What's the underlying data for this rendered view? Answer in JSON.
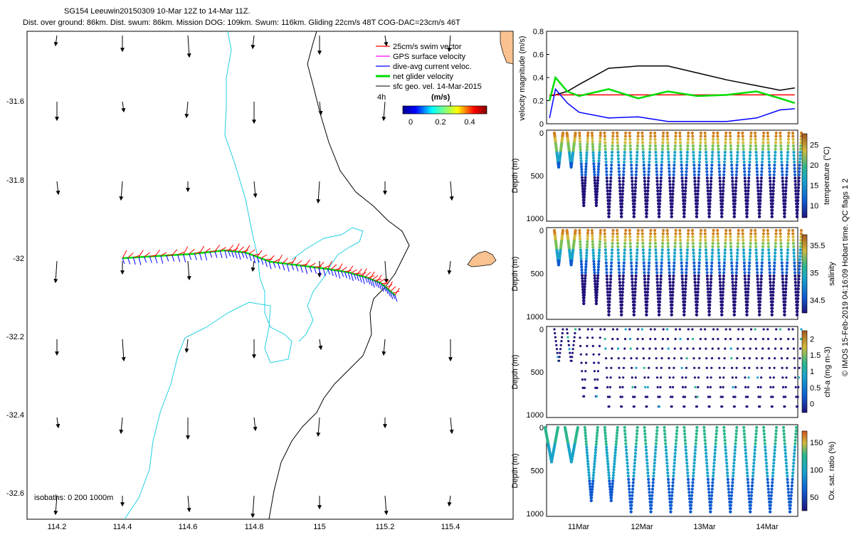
{
  "title": {
    "line1": "SG154 Leeuwin20150309 10-Mar 12Z to 14-Mar 11Z.",
    "line2": "Dist. over ground: 86km. Dist. swum: 86km. Mission DOG: 109km. Swum: 116km. Gliding 22cm/s 48T COG-DAC=23cm/s 46T"
  },
  "map": {
    "lon_ticks": [
      "114.2",
      "114.4",
      "114.6",
      "114.8",
      "115",
      "115.2",
      "115.4"
    ],
    "lat_ticks": [
      "-31.6",
      "-31.8",
      "-32",
      "-32.2",
      "-32.4",
      "-32.6"
    ],
    "legend": [
      {
        "label": "25cm/s swim vector",
        "color": "#ff0000"
      },
      {
        "label": "GPS surface velocity",
        "color": "#ff00ff"
      },
      {
        "label": "dive-avg current veloc.",
        "color": "#0000ff"
      },
      {
        "label": "net glider velocity",
        "color": "#00dd00"
      },
      {
        "label": "sfc geo. vel. 14-Mar-2015",
        "color": "#000000"
      }
    ],
    "scale_label": "4h",
    "colorbar_unit": "(m/s)",
    "colorbar_ticks": [
      "0",
      "0.2",
      "0.4"
    ],
    "isobaths": "isobaths: 0   200  1000m"
  },
  "chart_data": [
    {
      "type": "line",
      "title": "",
      "ylabel": "velocity magnitude (m/s)",
      "ylim": [
        0,
        0.8
      ],
      "yticks": [
        "0",
        "0.2",
        "0.4",
        "0.6",
        "0.8"
      ],
      "x": [
        10.5,
        10.6,
        10.8,
        11.0,
        11.5,
        12.0,
        12.5,
        13.0,
        13.5,
        14.0,
        14.4,
        14.65
      ],
      "series": [
        {
          "name": "sfc geo. vel.",
          "color": "#000000",
          "values": [
            0.24,
            0.25,
            0.28,
            0.34,
            0.48,
            0.5,
            0.5,
            0.44,
            0.38,
            0.33,
            0.29,
            0.31
          ]
        },
        {
          "name": "swim vector",
          "color": "#ff0000",
          "values": [
            0.25,
            0.25,
            0.25,
            0.25,
            0.25,
            0.25,
            0.25,
            0.25,
            0.25,
            0.25,
            0.25,
            0.25
          ]
        },
        {
          "name": "dive-avg current",
          "color": "#0000ff",
          "values": [
            0.05,
            0.3,
            0.18,
            0.1,
            0.05,
            0.06,
            0.02,
            0.02,
            0.02,
            0.05,
            0.12,
            0.13
          ]
        },
        {
          "name": "net glider velocity",
          "color": "#00dd00",
          "values": [
            0.2,
            0.4,
            0.28,
            0.24,
            0.3,
            0.22,
            0.28,
            0.24,
            0.25,
            0.28,
            0.22,
            0.18
          ]
        }
      ]
    },
    {
      "type": "scatter",
      "ylabel": "Depth (m)",
      "ylim": [
        1000,
        0
      ],
      "yticks": [
        "0",
        "500",
        "1000"
      ],
      "colorbar_label": "temperature (°C)",
      "colorbar_ticks": [
        "10",
        "15",
        "20",
        "25"
      ],
      "dives": 20
    },
    {
      "type": "scatter",
      "ylabel": "Depth (m)",
      "ylim": [
        1000,
        0
      ],
      "yticks": [
        "0",
        "500",
        "1000"
      ],
      "colorbar_label": "salinity",
      "colorbar_ticks": [
        "34.5",
        "35",
        "35.5"
      ],
      "dives": 20
    },
    {
      "type": "scatter",
      "ylabel": "Depth (m)",
      "ylim": [
        1000,
        0
      ],
      "yticks": [
        "0",
        "500",
        "1000"
      ],
      "colorbar_label": "chl-a (mg m-3)",
      "colorbar_ticks": [
        "0",
        "0.5",
        "1",
        "1.5",
        "2"
      ],
      "dives": 20
    },
    {
      "type": "scatter",
      "ylabel": "Depth (m)",
      "ylim": [
        1000,
        0
      ],
      "yticks": [
        "0",
        "500",
        "1000"
      ],
      "colorbar_label": "Ox. sat. ratio (%)",
      "colorbar_ticks": [
        "50",
        "100",
        "150"
      ],
      "dives": 13,
      "x_ticks": [
        "11Mar",
        "12Mar",
        "13Mar",
        "14Mar"
      ]
    }
  ],
  "credit": "© IMOS 15-Feb-2019 04:16:09 Hobart time. QC flags 1  2"
}
